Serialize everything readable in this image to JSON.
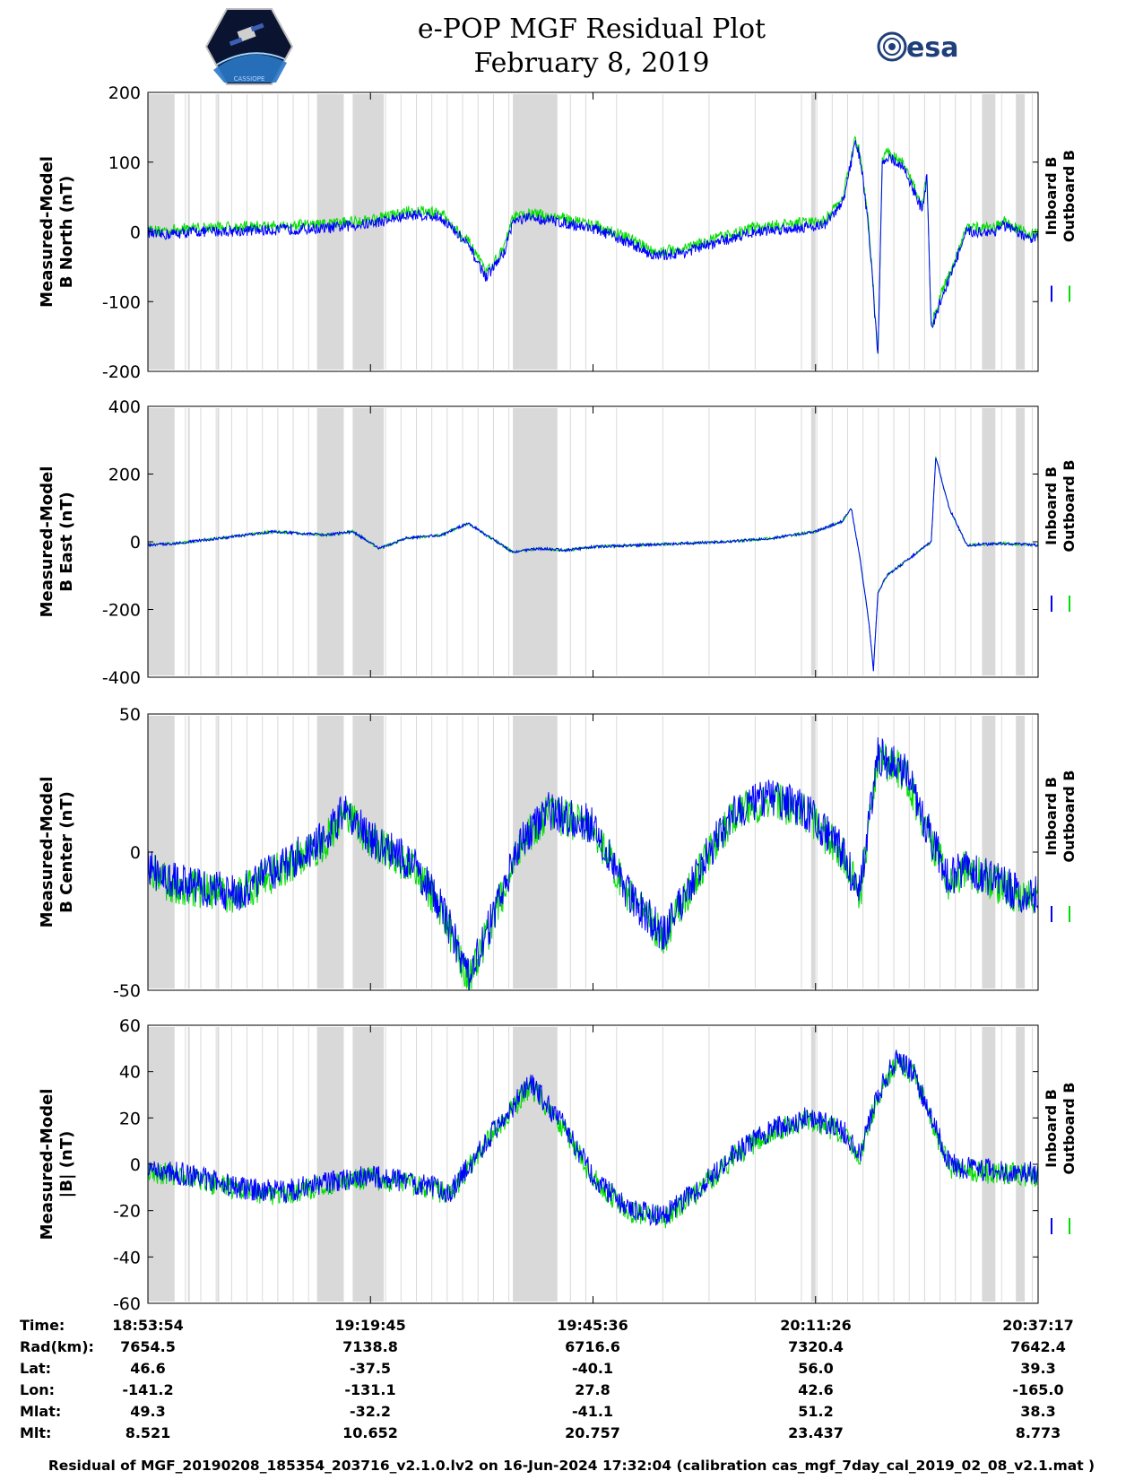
{
  "header": {
    "title_line1": "e-POP MGF Residual Plot",
    "title_line2": "February 8, 2019",
    "left_logo_text": "CASSIOPE",
    "right_logo_text": "esa"
  },
  "colors": {
    "inboard": "#0000ff",
    "outboard": "#00dd00",
    "gap_shading": "#d9d9d9",
    "axis": "#000000"
  },
  "chart_data": [
    {
      "type": "line",
      "title": "",
      "ylabel_line1": "Measured-Model",
      "ylabel_line2": "B North (nT)",
      "ylim": [
        -200,
        200
      ],
      "yticks": [
        -200,
        -100,
        0,
        100,
        200
      ],
      "ytick_labels": [
        "-200",
        "-100",
        "0",
        "100",
        "200"
      ],
      "xlim": [
        0,
        1
      ],
      "legend": [
        "Inboard B",
        "Outboard B"
      ],
      "legend_position": "right",
      "anchors_x": [
        0,
        0.01,
        0.05,
        0.12,
        0.2,
        0.25,
        0.3,
        0.33,
        0.36,
        0.38,
        0.4,
        0.41,
        0.43,
        0.46,
        0.5,
        0.54,
        0.57,
        0.6,
        0.64,
        0.68,
        0.72,
        0.76,
        0.78,
        0.8,
        0.795,
        0.8,
        0.81,
        0.82,
        0.825,
        0.83,
        0.85,
        0.87,
        0.875,
        0.88,
        0.89,
        0.92,
        0.95,
        0.96,
        0.99,
        1.0
      ],
      "anchors_y": [
        0,
        -5,
        0,
        2,
        5,
        12,
        25,
        20,
        -20,
        -65,
        -30,
        15,
        20,
        15,
        5,
        -15,
        -35,
        -30,
        -15,
        0,
        5,
        10,
        40,
        105,
        130,
        110,
        0,
        -180,
        95,
        110,
        90,
        30,
        80,
        -140,
        -100,
        0,
        0,
        10,
        -10,
        -8
      ],
      "noise": 8,
      "outboard_offset": 6,
      "gap_bands": [
        [
          0.0,
          0.03
        ],
        [
          0.045,
          0.047
        ],
        [
          0.078,
          0.08
        ],
        [
          0.19,
          0.22
        ],
        [
          0.23,
          0.265
        ],
        [
          0.41,
          0.46
        ],
        [
          0.745,
          0.75
        ],
        [
          0.937,
          0.952
        ],
        [
          0.975,
          0.985
        ]
      ]
    },
    {
      "type": "line",
      "title": "",
      "ylabel_line1": "Measured-Model",
      "ylabel_line2": "B East (nT)",
      "ylim": [
        -400,
        400
      ],
      "yticks": [
        -400,
        -200,
        0,
        200,
        400
      ],
      "ytick_labels": [
        "-400",
        "-200",
        "0",
        "200",
        "400"
      ],
      "xlim": [
        0,
        1
      ],
      "legend": [
        "Inboard B",
        "Outboard B"
      ],
      "legend_position": "right",
      "anchors_x": [
        0,
        0.03,
        0.08,
        0.14,
        0.2,
        0.23,
        0.26,
        0.29,
        0.33,
        0.36,
        0.38,
        0.41,
        0.44,
        0.47,
        0.5,
        0.55,
        0.6,
        0.65,
        0.7,
        0.75,
        0.78,
        0.79,
        0.8,
        0.81,
        0.815,
        0.82,
        0.83,
        0.86,
        0.88,
        0.885,
        0.89,
        0.9,
        0.92,
        0.96,
        1.0
      ],
      "anchors_y": [
        -10,
        -5,
        10,
        30,
        20,
        30,
        -20,
        10,
        20,
        55,
        20,
        -30,
        -20,
        -25,
        -15,
        -10,
        -5,
        0,
        10,
        30,
        60,
        100,
        -50,
        -240,
        -380,
        -150,
        -100,
        -40,
        0,
        250,
        200,
        100,
        -10,
        -5,
        -10
      ],
      "noise": 4,
      "outboard_offset": 0,
      "gap_bands": [
        [
          0.0,
          0.03
        ],
        [
          0.045,
          0.047
        ],
        [
          0.078,
          0.08
        ],
        [
          0.19,
          0.22
        ],
        [
          0.23,
          0.265
        ],
        [
          0.41,
          0.46
        ],
        [
          0.745,
          0.75
        ],
        [
          0.937,
          0.952
        ],
        [
          0.975,
          0.985
        ]
      ]
    },
    {
      "type": "line",
      "title": "",
      "ylabel_line1": "Measured-Model",
      "ylabel_line2": "B Center (nT)",
      "ylim": [
        -50,
        50
      ],
      "yticks": [
        -50,
        0,
        50
      ],
      "ytick_labels": [
        "-50",
        "0",
        "50"
      ],
      "xlim": [
        0,
        1
      ],
      "legend": [
        "Inboard B",
        "Outboard B"
      ],
      "legend_position": "right",
      "anchors_x": [
        0,
        0.02,
        0.05,
        0.1,
        0.15,
        0.2,
        0.22,
        0.25,
        0.3,
        0.33,
        0.36,
        0.38,
        0.42,
        0.45,
        0.5,
        0.54,
        0.58,
        0.62,
        0.66,
        0.7,
        0.74,
        0.78,
        0.8,
        0.82,
        0.85,
        0.88,
        0.9,
        0.92,
        0.95,
        0.98,
        1.0
      ],
      "anchors_y": [
        -5,
        -10,
        -12,
        -15,
        -5,
        5,
        15,
        5,
        -5,
        -20,
        -45,
        -30,
        5,
        15,
        10,
        -15,
        -30,
        -5,
        15,
        20,
        15,
        0,
        -15,
        35,
        30,
        5,
        -10,
        -5,
        -10,
        -15,
        -15
      ],
      "noise": 7,
      "outboard_offset": -1,
      "gap_bands": [
        [
          0.0,
          0.03
        ],
        [
          0.045,
          0.047
        ],
        [
          0.078,
          0.08
        ],
        [
          0.19,
          0.22
        ],
        [
          0.23,
          0.265
        ],
        [
          0.41,
          0.46
        ],
        [
          0.745,
          0.75
        ],
        [
          0.937,
          0.952
        ],
        [
          0.975,
          0.985
        ]
      ]
    },
    {
      "type": "line",
      "title": "",
      "ylabel_line1": "Measured-Model",
      "ylabel_line2": "|B| (nT)",
      "ylim": [
        -60,
        60
      ],
      "yticks": [
        -60,
        -40,
        -20,
        0,
        20,
        40,
        60
      ],
      "ytick_labels": [
        "-60",
        "-40",
        "-20",
        "0",
        "20",
        "40",
        "60"
      ],
      "xlim": [
        0,
        1
      ],
      "legend": [
        "Inboard B",
        "Outboard B"
      ],
      "legend_position": "right",
      "anchors_x": [
        0,
        0.05,
        0.1,
        0.15,
        0.2,
        0.25,
        0.3,
        0.34,
        0.38,
        0.43,
        0.47,
        0.5,
        0.54,
        0.58,
        0.62,
        0.66,
        0.7,
        0.74,
        0.78,
        0.8,
        0.82,
        0.84,
        0.86,
        0.88,
        0.9,
        0.93,
        0.96,
        1.0
      ],
      "anchors_y": [
        -2,
        -5,
        -10,
        -12,
        -8,
        -5,
        -8,
        -12,
        10,
        35,
        15,
        -5,
        -20,
        -22,
        -10,
        5,
        15,
        20,
        15,
        5,
        30,
        45,
        40,
        20,
        0,
        -2,
        -3,
        -4
      ],
      "noise": 5,
      "outboard_offset": -1,
      "gap_bands": [
        [
          0.0,
          0.03
        ],
        [
          0.045,
          0.047
        ],
        [
          0.078,
          0.08
        ],
        [
          0.19,
          0.22
        ],
        [
          0.23,
          0.265
        ],
        [
          0.41,
          0.46
        ],
        [
          0.745,
          0.75
        ],
        [
          0.937,
          0.952
        ],
        [
          0.975,
          0.985
        ]
      ]
    }
  ],
  "footer": {
    "rows": [
      {
        "label": "Time:",
        "values": [
          "18:53:54",
          "19:19:45",
          "19:45:36",
          "20:11:26",
          "20:37:17"
        ]
      },
      {
        "label": "Rad(km):",
        "values": [
          "7654.5",
          "7138.8",
          "6716.6",
          "7320.4",
          "7642.4"
        ]
      },
      {
        "label": "Lat:",
        "values": [
          "46.6",
          "-37.5",
          "-40.1",
          "56.0",
          "39.3"
        ]
      },
      {
        "label": "Lon:",
        "values": [
          "-141.2",
          "-131.1",
          "27.8",
          "42.6",
          "-165.0"
        ]
      },
      {
        "label": "Mlat:",
        "values": [
          "49.3",
          "-32.2",
          "-41.1",
          "51.2",
          "38.3"
        ]
      },
      {
        "label": "Mlt:",
        "values": [
          "8.521",
          "10.652",
          "20.757",
          "23.437",
          "8.773"
        ]
      }
    ],
    "footnote": "Residual of MGF_20190208_185354_203716_v2.1.0.lv2 on 16-Jun-2024 17:32:04 (calibration cas_mgf_7day_cal_2019_02_08_v2.1.mat )"
  }
}
